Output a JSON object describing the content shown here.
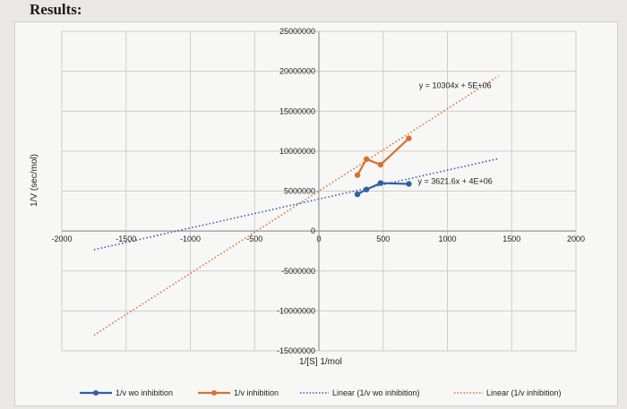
{
  "heading": "Results:",
  "colors": {
    "wo_inhibition": "#2e5fa8",
    "inhibition": "#d9712e",
    "grid": "#cdcdcd",
    "axis": "#9a9a9a"
  },
  "chart_data": {
    "type": "scatter",
    "xlabel": "1/[S] 1/mol",
    "ylabel": "1/V (sec/mol)",
    "xlim": [
      -2000,
      2000
    ],
    "ylim": [
      -15000000,
      25000000
    ],
    "x_ticks": [
      {
        "value": -2000,
        "label": "-2000"
      },
      {
        "value": -1500,
        "label": "-1500"
      },
      {
        "value": -1000,
        "label": "-1000"
      },
      {
        "value": -500,
        "label": "-500"
      },
      {
        "value": 0,
        "label": "0"
      },
      {
        "value": 500,
        "label": "500"
      },
      {
        "value": 1000,
        "label": "1000"
      },
      {
        "value": 1500,
        "label": "1500"
      },
      {
        "value": 2000,
        "label": "2000"
      }
    ],
    "y_ticks": [
      {
        "value": 25000000,
        "label": "25000000"
      },
      {
        "value": 20000000,
        "label": "20000000"
      },
      {
        "value": 15000000,
        "label": "15000000"
      },
      {
        "value": 10000000,
        "label": "10000000"
      },
      {
        "value": 5000000,
        "label": "5000000"
      },
      {
        "value": 0,
        "label": "0"
      },
      {
        "value": -5000000,
        "label": "-5000000"
      },
      {
        "value": -10000000,
        "label": "-10000000"
      },
      {
        "value": -15000000,
        "label": "-15000000"
      }
    ],
    "grid": true,
    "legend_position": "bottom",
    "series": [
      {
        "name": "1/v wo inhibition",
        "color_key": "wo_inhibition",
        "x": [
          300,
          370,
          480,
          700
        ],
        "y": [
          4600000,
          5200000,
          6000000,
          5900000
        ]
      },
      {
        "name": "1/v inhibition",
        "color_key": "inhibition",
        "x": [
          300,
          370,
          480,
          700
        ],
        "y": [
          7000000,
          9000000,
          8300000,
          11600000
        ]
      }
    ],
    "trendlines": [
      {
        "name": "Linear (1/v wo inhibition)",
        "color_key": "wo_inhibition",
        "slope": 3621.6,
        "intercept": 4000000,
        "x_range": [
          -1750,
          1400
        ],
        "equation": "y = 3621.6x + 4E+06"
      },
      {
        "name": "Linear (1/v inhibition)",
        "color_key": "inhibition",
        "slope": 10304,
        "intercept": 5000000,
        "x_range": [
          -1750,
          1400
        ],
        "equation": "y = 10304x + 5E+06"
      }
    ]
  }
}
